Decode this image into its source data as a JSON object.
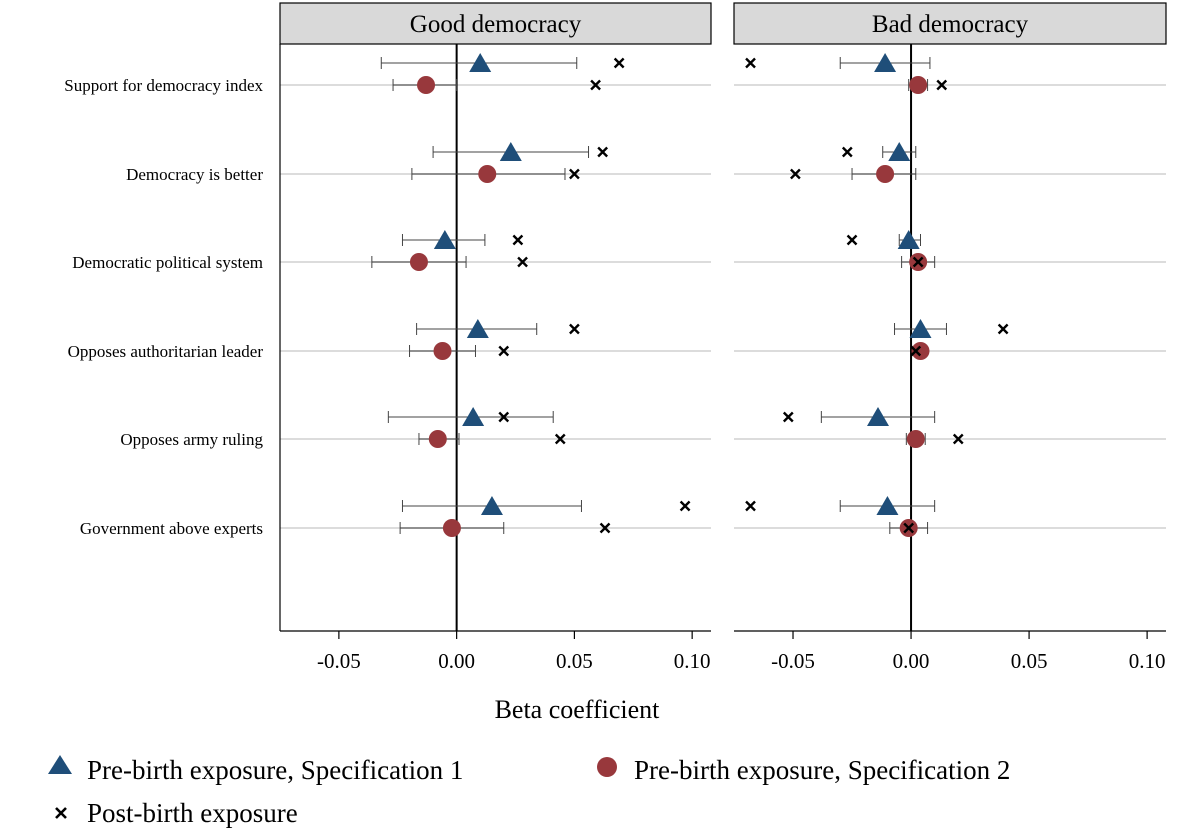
{
  "chart_data": {
    "type": "scatter",
    "xlabel": "Beta coefficient",
    "xlim": [
      -0.075,
      0.108
    ],
    "xticks": [
      -0.05,
      0.0,
      0.05,
      0.1
    ],
    "xtick_labels": [
      "-0.05",
      "0.00",
      "0.05",
      "0.10"
    ],
    "categories": [
      "Support for democracy index",
      "Democracy is better",
      "Democratic political system",
      "Opposes authoritarian leader",
      "Opposes army ruling",
      "Government above experts"
    ],
    "legend_position": "bottom",
    "legend": [
      {
        "name": "Pre-birth exposure, Specification 1",
        "marker": "triangle",
        "color": "#1f4e79"
      },
      {
        "name": "Pre-birth exposure, Specification 2",
        "marker": "circle",
        "color": "#98383c"
      },
      {
        "name": "Post-birth exposure",
        "marker": "x",
        "color": "#000000"
      }
    ],
    "panels": [
      {
        "title": "Good democracy",
        "spec1": [
          {
            "est": 0.01,
            "lo": -0.032,
            "hi": 0.051
          },
          {
            "est": 0.023,
            "lo": -0.01,
            "hi": 0.056
          },
          {
            "est": -0.005,
            "lo": -0.023,
            "hi": 0.012
          },
          {
            "est": 0.009,
            "lo": -0.017,
            "hi": 0.034
          },
          {
            "est": 0.007,
            "lo": -0.029,
            "hi": 0.041
          },
          {
            "est": 0.015,
            "lo": -0.023,
            "hi": 0.053
          }
        ],
        "spec2": [
          {
            "est": -0.013,
            "lo": -0.027,
            "hi": 0.0
          },
          {
            "est": 0.013,
            "lo": -0.019,
            "hi": 0.046
          },
          {
            "est": -0.016,
            "lo": -0.036,
            "hi": 0.004
          },
          {
            "est": -0.006,
            "lo": -0.02,
            "hi": 0.008
          },
          {
            "est": -0.008,
            "lo": -0.016,
            "hi": 0.001
          },
          {
            "est": -0.002,
            "lo": -0.024,
            "hi": 0.02
          }
        ],
        "post": [
          [
            0.069,
            0.059
          ],
          [
            0.062,
            0.05
          ],
          [
            0.026,
            0.028
          ],
          [
            0.05,
            0.02
          ],
          [
            0.02,
            0.044
          ],
          [
            0.097,
            0.063
          ]
        ]
      },
      {
        "title": "Bad democracy",
        "spec1": [
          {
            "est": -0.011,
            "lo": -0.03,
            "hi": 0.008
          },
          {
            "est": -0.005,
            "lo": -0.012,
            "hi": 0.002
          },
          {
            "est": -0.001,
            "lo": -0.005,
            "hi": 0.004
          },
          {
            "est": 0.004,
            "lo": -0.007,
            "hi": 0.015
          },
          {
            "est": -0.014,
            "lo": -0.038,
            "hi": 0.01
          },
          {
            "est": -0.01,
            "lo": -0.03,
            "hi": 0.01
          }
        ],
        "spec2": [
          {
            "est": 0.003,
            "lo": -0.001,
            "hi": 0.007
          },
          {
            "est": -0.011,
            "lo": -0.025,
            "hi": 0.002
          },
          {
            "est": 0.003,
            "lo": -0.004,
            "hi": 0.01
          },
          {
            "est": 0.004,
            "lo": 0.002,
            "hi": 0.006
          },
          {
            "est": 0.002,
            "lo": -0.002,
            "hi": 0.006
          },
          {
            "est": -0.001,
            "lo": -0.009,
            "hi": 0.007
          }
        ],
        "post": [
          [
            -0.068,
            0.013
          ],
          [
            -0.027,
            -0.049
          ],
          [
            -0.025,
            0.003
          ],
          [
            0.039,
            0.002
          ],
          [
            -0.052,
            0.02
          ],
          [
            -0.068,
            -0.001
          ]
        ]
      }
    ]
  }
}
